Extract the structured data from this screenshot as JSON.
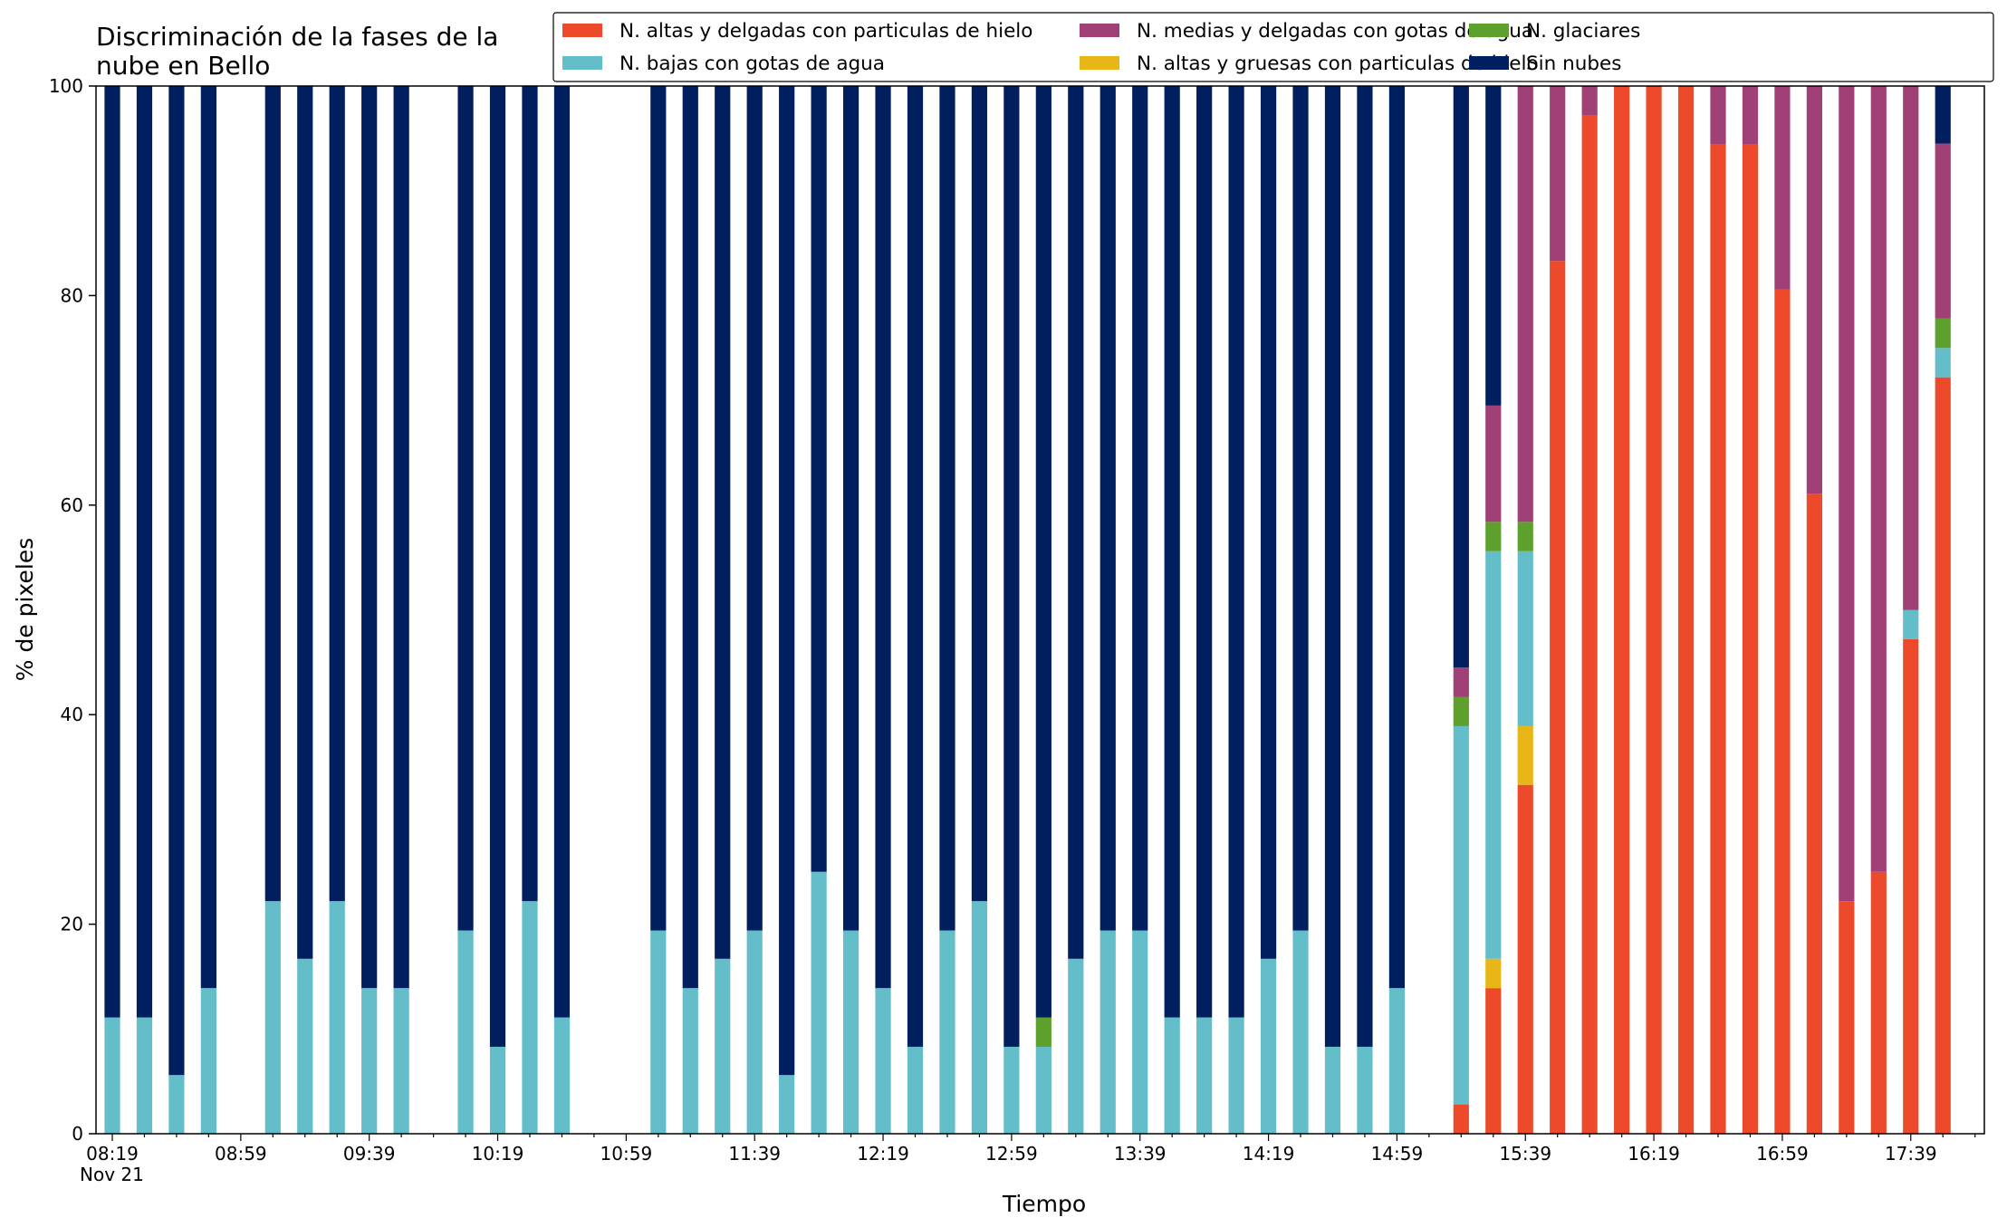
{
  "chart_data": {
    "type": "bar",
    "stacked": true,
    "title": "Discriminación de la fases de la\nnube en Bello",
    "xlabel": "Tiempo",
    "ylabel": "% de pixeles",
    "ylim": [
      0,
      100
    ],
    "yticks": [
      0,
      20,
      40,
      60,
      80,
      100
    ],
    "x_start": "08:19",
    "x_step_minutes": 10,
    "x_slots": 59,
    "x_tick_labels": [
      {
        "slot": 0,
        "label": "08:19",
        "sub": "Nov 21"
      },
      {
        "slot": 4,
        "label": "08:59"
      },
      {
        "slot": 8,
        "label": "09:39"
      },
      {
        "slot": 12,
        "label": "10:19"
      },
      {
        "slot": 16,
        "label": "10:59"
      },
      {
        "slot": 20,
        "label": "11:39"
      },
      {
        "slot": 24,
        "label": "12:19"
      },
      {
        "slot": 28,
        "label": "12:59"
      },
      {
        "slot": 32,
        "label": "13:39"
      },
      {
        "slot": 36,
        "label": "14:19"
      },
      {
        "slot": 40,
        "label": "14:59"
      },
      {
        "slot": 44,
        "label": "15:39"
      },
      {
        "slot": 48,
        "label": "16:19"
      },
      {
        "slot": 52,
        "label": "16:59"
      },
      {
        "slot": 56,
        "label": "17:39"
      }
    ],
    "legend_position": "top-right",
    "grid": false,
    "series": [
      {
        "name": "N. altas y delgadas con particulas de hielo",
        "color": "#ed4a2b"
      },
      {
        "name": "N. altas y gruesas con particulas de hielo",
        "color": "#e8b717"
      },
      {
        "name": "N. bajas con gotas de agua",
        "color": "#64bec9"
      },
      {
        "name": "N. glaciares",
        "color": "#5ea02c"
      },
      {
        "name": "N. medias y delgadas con gotas de agua",
        "color": "#a13f77"
      },
      {
        "name": "Sin nubes",
        "color": "#011e5f"
      }
    ],
    "legend_order": [
      0,
      2,
      4,
      1,
      3,
      5
    ],
    "bars": [
      {
        "time": "08:19",
        "values": [
          0,
          0,
          11.1,
          0,
          0,
          88.9
        ]
      },
      {
        "time": "08:29",
        "values": [
          0,
          0,
          11.1,
          0,
          0,
          88.9
        ]
      },
      {
        "time": "08:39",
        "values": [
          0,
          0,
          5.6,
          0,
          0,
          94.4
        ]
      },
      {
        "time": "08:49",
        "values": [
          0,
          0,
          13.9,
          0,
          0,
          86.1
        ]
      },
      {
        "time": "09:09",
        "values": [
          0,
          0,
          22.2,
          0,
          0,
          77.8
        ]
      },
      {
        "time": "09:19",
        "values": [
          0,
          0,
          16.7,
          0,
          0,
          83.3
        ]
      },
      {
        "time": "09:29",
        "values": [
          0,
          0,
          22.2,
          0,
          0,
          77.8
        ]
      },
      {
        "time": "09:39",
        "values": [
          0,
          0,
          13.9,
          0,
          0,
          86.1
        ]
      },
      {
        "time": "09:49",
        "values": [
          0,
          0,
          13.9,
          0,
          0,
          86.1
        ]
      },
      {
        "time": "10:09",
        "values": [
          0,
          0,
          19.4,
          0,
          0,
          80.6
        ]
      },
      {
        "time": "10:19",
        "values": [
          0,
          0,
          8.3,
          0,
          0,
          91.7
        ]
      },
      {
        "time": "10:29",
        "values": [
          0,
          0,
          22.2,
          0,
          0,
          77.8
        ]
      },
      {
        "time": "10:39",
        "values": [
          0,
          0,
          11.1,
          0,
          0,
          88.9
        ]
      },
      {
        "time": "11:09",
        "values": [
          0,
          0,
          19.4,
          0,
          0,
          80.6
        ]
      },
      {
        "time": "11:19",
        "values": [
          0,
          0,
          13.9,
          0,
          0,
          86.1
        ]
      },
      {
        "time": "11:29",
        "values": [
          0,
          0,
          16.7,
          0,
          0,
          83.3
        ]
      },
      {
        "time": "11:39",
        "values": [
          0,
          0,
          19.4,
          0,
          0,
          80.6
        ]
      },
      {
        "time": "11:49",
        "values": [
          0,
          0,
          5.6,
          0,
          0,
          94.4
        ]
      },
      {
        "time": "11:59",
        "values": [
          0,
          0,
          25.0,
          0,
          0,
          75.0
        ]
      },
      {
        "time": "12:09",
        "values": [
          0,
          0,
          19.4,
          0,
          0,
          80.6
        ]
      },
      {
        "time": "12:19",
        "values": [
          0,
          0,
          13.9,
          0,
          0,
          86.1
        ]
      },
      {
        "time": "12:29",
        "values": [
          0,
          0,
          8.3,
          0,
          0,
          91.7
        ]
      },
      {
        "time": "12:39",
        "values": [
          0,
          0,
          19.4,
          0,
          0,
          80.6
        ]
      },
      {
        "time": "12:49",
        "values": [
          0,
          0,
          22.2,
          0,
          0,
          77.8
        ]
      },
      {
        "time": "12:59",
        "values": [
          0,
          0,
          8.3,
          0,
          0,
          91.7
        ]
      },
      {
        "time": "13:09",
        "values": [
          0,
          0,
          8.3,
          2.8,
          0,
          88.9
        ]
      },
      {
        "time": "13:19",
        "values": [
          0,
          0,
          16.7,
          0,
          0,
          83.3
        ]
      },
      {
        "time": "13:29",
        "values": [
          0,
          0,
          19.4,
          0,
          0,
          80.6
        ]
      },
      {
        "time": "13:39",
        "values": [
          0,
          0,
          19.4,
          0,
          0,
          80.6
        ]
      },
      {
        "time": "13:49",
        "values": [
          0,
          0,
          11.1,
          0,
          0,
          88.9
        ]
      },
      {
        "time": "13:59",
        "values": [
          0,
          0,
          11.1,
          0,
          0,
          88.9
        ]
      },
      {
        "time": "14:09",
        "values": [
          0,
          0,
          11.1,
          0,
          0,
          88.9
        ]
      },
      {
        "time": "14:19",
        "values": [
          0,
          0,
          16.7,
          0,
          0,
          83.3
        ]
      },
      {
        "time": "14:29",
        "values": [
          0,
          0,
          19.4,
          0,
          0,
          80.6
        ]
      },
      {
        "time": "14:39",
        "values": [
          0,
          0,
          8.3,
          0,
          0,
          91.7
        ]
      },
      {
        "time": "14:49",
        "values": [
          0,
          0,
          8.3,
          0,
          0,
          91.7
        ]
      },
      {
        "time": "14:59",
        "values": [
          0,
          0,
          13.9,
          0,
          0,
          86.1
        ]
      },
      {
        "time": "15:19",
        "values": [
          2.8,
          0,
          36.1,
          2.8,
          2.8,
          55.5
        ]
      },
      {
        "time": "15:29",
        "values": [
          13.9,
          2.8,
          38.9,
          2.8,
          11.1,
          30.5
        ]
      },
      {
        "time": "15:39",
        "values": [
          33.3,
          5.6,
          16.7,
          2.8,
          41.6,
          0
        ]
      },
      {
        "time": "15:49",
        "values": [
          83.3,
          0,
          0,
          0,
          16.7,
          0
        ]
      },
      {
        "time": "15:59",
        "values": [
          97.2,
          0,
          0,
          0,
          2.8,
          0
        ]
      },
      {
        "time": "16:09",
        "values": [
          100,
          0,
          0,
          0,
          0,
          0
        ]
      },
      {
        "time": "16:19",
        "values": [
          100,
          0,
          0,
          0,
          0,
          0
        ]
      },
      {
        "time": "16:29",
        "values": [
          100,
          0,
          0,
          0,
          0,
          0
        ]
      },
      {
        "time": "16:39",
        "values": [
          94.4,
          0,
          0,
          0,
          5.6,
          0
        ]
      },
      {
        "time": "16:49",
        "values": [
          94.4,
          0,
          0,
          0,
          5.6,
          0
        ]
      },
      {
        "time": "16:59",
        "values": [
          80.6,
          0,
          0,
          0,
          19.4,
          0
        ]
      },
      {
        "time": "17:09",
        "values": [
          61.1,
          0,
          0,
          0,
          38.9,
          0
        ]
      },
      {
        "time": "17:19",
        "values": [
          22.2,
          0,
          0,
          0,
          77.8,
          0
        ]
      },
      {
        "time": "17:29",
        "values": [
          25.0,
          0,
          0,
          0,
          75.0,
          0
        ]
      },
      {
        "time": "17:39",
        "values": [
          47.2,
          0,
          2.8,
          0,
          50.0,
          0
        ]
      },
      {
        "time": "17:49",
        "values": [
          72.2,
          0,
          2.8,
          2.8,
          16.7,
          5.5
        ]
      }
    ]
  }
}
